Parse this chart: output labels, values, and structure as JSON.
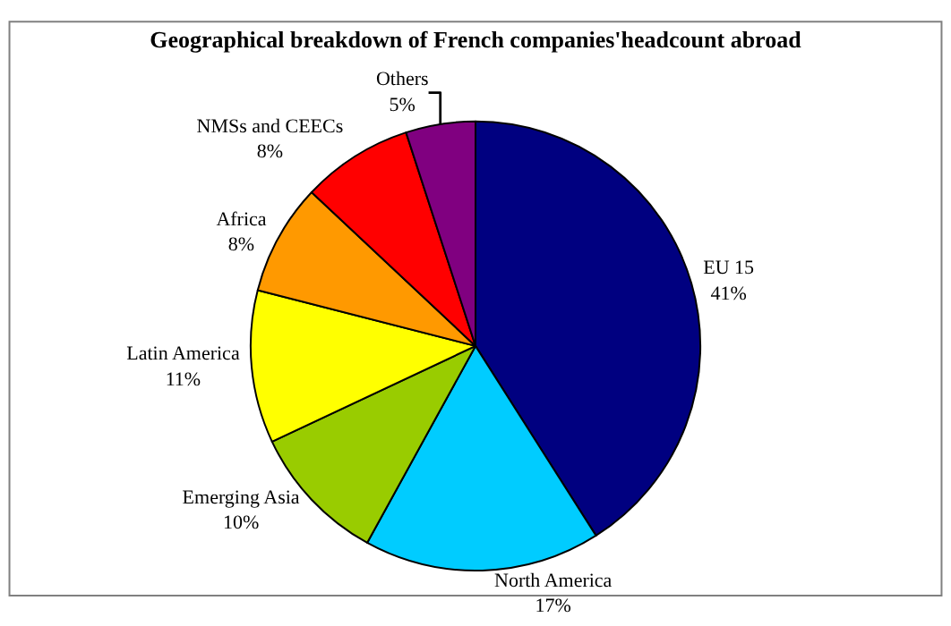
{
  "chart_data": {
    "type": "pie",
    "title": "Geographical breakdown of French companies'headcount abroad",
    "categories": [
      "EU 15",
      "North America",
      "Emerging Asia",
      "Latin America",
      "Africa",
      "NMSs and CEECs",
      "Others"
    ],
    "values": [
      41,
      17,
      10,
      11,
      8,
      8,
      5
    ],
    "value_labels": [
      "41%",
      "17%",
      "10%",
      "11%",
      "8%",
      "8%",
      "5%"
    ],
    "colors": [
      "#000080",
      "#00ccff",
      "#99cc00",
      "#ffff00",
      "#ff9900",
      "#ff0000",
      "#800080"
    ],
    "legend": false
  }
}
